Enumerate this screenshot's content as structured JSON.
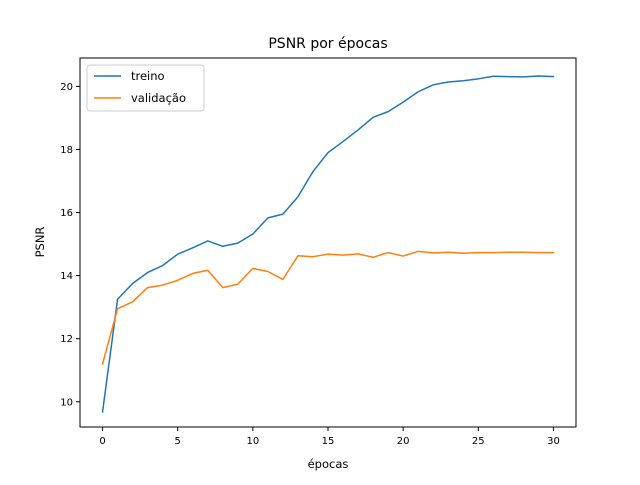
{
  "chart_data": {
    "type": "line",
    "title": "PSNR por épocas",
    "xlabel": "épocas",
    "ylabel": "PSNR",
    "xlim": [
      -1.5,
      31.5
    ],
    "ylim": [
      9.2,
      20.9
    ],
    "xticks": [
      0,
      5,
      10,
      15,
      20,
      25,
      30
    ],
    "yticks": [
      10,
      12,
      14,
      16,
      18,
      20
    ],
    "grid": false,
    "legend_position": "top-left",
    "x": [
      0,
      1,
      2,
      3,
      4,
      5,
      6,
      7,
      8,
      9,
      10,
      11,
      12,
      13,
      14,
      15,
      16,
      17,
      18,
      19,
      20,
      21,
      22,
      23,
      24,
      25,
      26,
      27,
      28,
      29,
      30
    ],
    "series": [
      {
        "name": "treino",
        "color": "#1f77b4",
        "values": [
          9.68,
          13.25,
          13.75,
          14.1,
          14.32,
          14.68,
          14.88,
          15.1,
          14.93,
          15.03,
          15.32,
          15.83,
          15.95,
          16.5,
          17.3,
          17.9,
          18.25,
          18.62,
          19.02,
          19.2,
          19.5,
          19.83,
          20.05,
          20.14,
          20.18,
          20.24,
          20.32,
          20.31,
          20.3,
          20.33,
          20.31
        ]
      },
      {
        "name": "validação",
        "color": "#ff7f0e",
        "values": [
          11.2,
          12.95,
          13.17,
          13.62,
          13.7,
          13.85,
          14.07,
          14.17,
          13.62,
          13.73,
          14.23,
          14.13,
          13.88,
          14.63,
          14.6,
          14.68,
          14.65,
          14.69,
          14.58,
          14.73,
          14.62,
          14.77,
          14.72,
          14.74,
          14.71,
          14.73,
          14.73,
          14.74,
          14.74,
          14.73,
          14.73
        ]
      }
    ]
  }
}
